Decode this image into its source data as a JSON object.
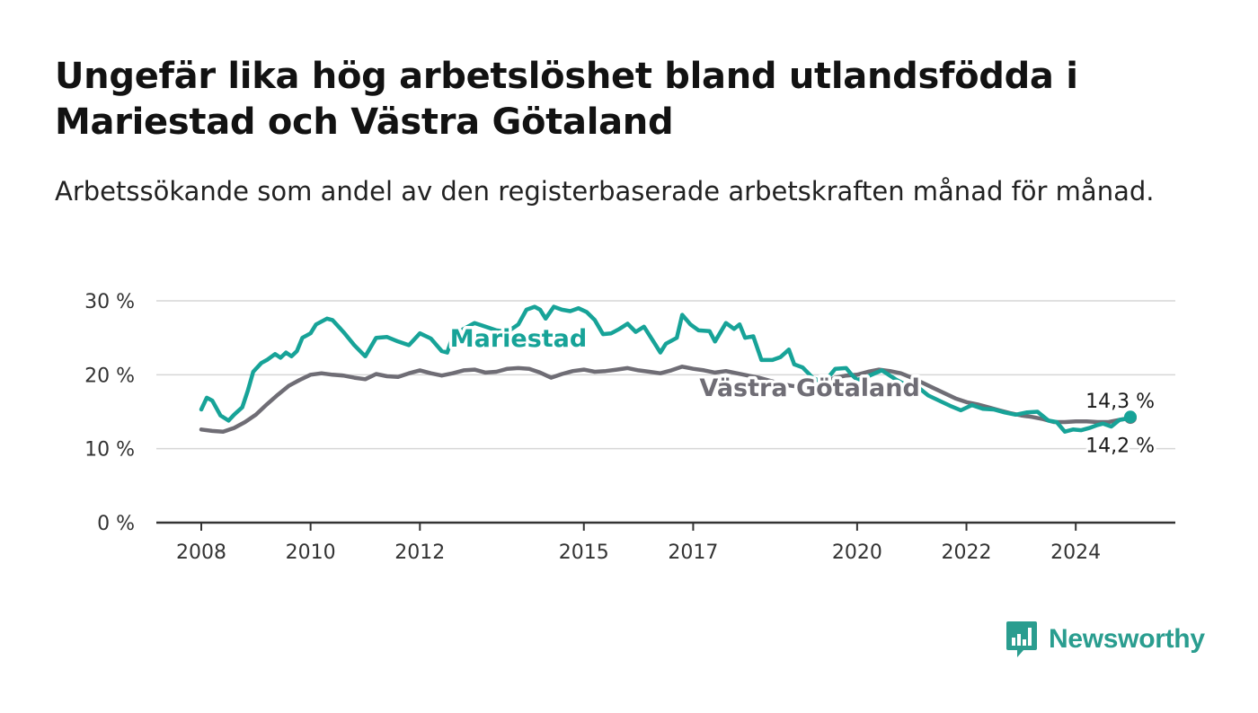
{
  "title": "Ungefär lika hög arbetslöshet bland utlandsfödda i Mariestad och Västra Götaland",
  "subtitle": "Arbetssökande som andel av den registerbaserade arbetskraften månad för månad.",
  "brand": {
    "name": "Newsworthy",
    "icon": "newsworthy-logo-icon",
    "color": "#2a9d8f"
  },
  "chart_data": {
    "type": "line",
    "ylim": [
      0,
      30
    ],
    "yticks": [
      {
        "value": 0,
        "label": "0 %"
      },
      {
        "value": 10,
        "label": "10 %"
      },
      {
        "value": 20,
        "label": "20 %"
      },
      {
        "value": 30,
        "label": "30 %"
      }
    ],
    "xticks": [
      {
        "value": 2008.0,
        "label": "2008"
      },
      {
        "value": 2010.0,
        "label": "2010"
      },
      {
        "value": 2012.0,
        "label": "2012"
      },
      {
        "value": 2015.0,
        "label": "2015"
      },
      {
        "value": 2017.0,
        "label": "2017"
      },
      {
        "value": 2020.0,
        "label": "2020"
      },
      {
        "value": 2022.0,
        "label": "2022"
      },
      {
        "value": 2024.0,
        "label": "2024"
      }
    ],
    "grid": true,
    "series": [
      {
        "name": "Mariestad",
        "color": "#17a398",
        "end_label": "14,3 %",
        "points": [
          [
            2008.0,
            15.3
          ],
          [
            2008.1,
            16.9
          ],
          [
            2008.2,
            16.5
          ],
          [
            2008.35,
            14.5
          ],
          [
            2008.5,
            13.8
          ],
          [
            2008.6,
            14.6
          ],
          [
            2008.75,
            15.6
          ],
          [
            2008.85,
            17.8
          ],
          [
            2008.95,
            20.4
          ],
          [
            2009.1,
            21.6
          ],
          [
            2009.2,
            22.0
          ],
          [
            2009.35,
            22.8
          ],
          [
            2009.45,
            22.3
          ],
          [
            2009.55,
            23.0
          ],
          [
            2009.65,
            22.5
          ],
          [
            2009.75,
            23.2
          ],
          [
            2009.85,
            25.0
          ],
          [
            2010.0,
            25.6
          ],
          [
            2010.1,
            26.8
          ],
          [
            2010.3,
            27.6
          ],
          [
            2010.4,
            27.4
          ],
          [
            2010.6,
            25.8
          ],
          [
            2010.8,
            24.0
          ],
          [
            2011.0,
            22.5
          ],
          [
            2011.2,
            25.0
          ],
          [
            2011.4,
            25.1
          ],
          [
            2011.6,
            24.5
          ],
          [
            2011.8,
            24.0
          ],
          [
            2012.0,
            25.6
          ],
          [
            2012.2,
            24.9
          ],
          [
            2012.4,
            23.2
          ],
          [
            2012.5,
            23.0
          ],
          [
            2012.6,
            25.2
          ],
          [
            2012.8,
            26.2
          ],
          [
            2013.0,
            27.0
          ],
          [
            2013.2,
            26.5
          ],
          [
            2013.4,
            26.0
          ],
          [
            2013.6,
            25.8
          ],
          [
            2013.8,
            26.8
          ],
          [
            2013.95,
            28.8
          ],
          [
            2014.1,
            29.2
          ],
          [
            2014.2,
            28.8
          ],
          [
            2014.3,
            27.6
          ],
          [
            2014.45,
            29.2
          ],
          [
            2014.6,
            28.8
          ],
          [
            2014.75,
            28.6
          ],
          [
            2014.9,
            29.0
          ],
          [
            2015.05,
            28.5
          ],
          [
            2015.2,
            27.4
          ],
          [
            2015.35,
            25.5
          ],
          [
            2015.5,
            25.6
          ],
          [
            2015.65,
            26.2
          ],
          [
            2015.8,
            26.9
          ],
          [
            2015.95,
            25.8
          ],
          [
            2016.1,
            26.5
          ],
          [
            2016.3,
            24.2
          ],
          [
            2016.4,
            23.0
          ],
          [
            2016.5,
            24.2
          ],
          [
            2016.7,
            25.0
          ],
          [
            2016.8,
            28.1
          ],
          [
            2016.95,
            26.8
          ],
          [
            2017.1,
            26.0
          ],
          [
            2017.3,
            25.9
          ],
          [
            2017.4,
            24.5
          ],
          [
            2017.6,
            27.0
          ],
          [
            2017.75,
            26.2
          ],
          [
            2017.85,
            26.8
          ],
          [
            2017.95,
            25.0
          ],
          [
            2018.1,
            25.2
          ],
          [
            2018.25,
            22.0
          ],
          [
            2018.45,
            22.0
          ],
          [
            2018.6,
            22.4
          ],
          [
            2018.75,
            23.4
          ],
          [
            2018.85,
            21.4
          ],
          [
            2019.0,
            21.0
          ],
          [
            2019.2,
            19.5
          ],
          [
            2019.4,
            19.0
          ],
          [
            2019.6,
            20.8
          ],
          [
            2019.8,
            20.9
          ],
          [
            2019.9,
            20.0
          ],
          [
            2020.0,
            19.3
          ],
          [
            2020.2,
            19.8
          ],
          [
            2020.45,
            20.6
          ],
          [
            2020.7,
            19.4
          ],
          [
            2020.9,
            18.6
          ],
          [
            2021.1,
            18.4
          ],
          [
            2021.3,
            17.2
          ],
          [
            2021.5,
            16.5
          ],
          [
            2021.7,
            15.8
          ],
          [
            2021.9,
            15.2
          ],
          [
            2022.1,
            15.9
          ],
          [
            2022.3,
            15.4
          ],
          [
            2022.5,
            15.3
          ],
          [
            2022.7,
            14.9
          ],
          [
            2022.9,
            14.6
          ],
          [
            2023.1,
            14.9
          ],
          [
            2023.3,
            15.0
          ],
          [
            2023.5,
            13.8
          ],
          [
            2023.65,
            13.6
          ],
          [
            2023.8,
            12.3
          ],
          [
            2023.95,
            12.6
          ],
          [
            2024.1,
            12.5
          ],
          [
            2024.25,
            12.8
          ],
          [
            2024.4,
            13.2
          ],
          [
            2024.5,
            13.4
          ],
          [
            2024.65,
            13.0
          ],
          [
            2024.8,
            13.9
          ],
          [
            2024.9,
            14.0
          ],
          [
            2025.0,
            14.3
          ]
        ]
      },
      {
        "name": "Västra Götaland",
        "color": "#6f6d75",
        "end_label": "14,2 %",
        "points": [
          [
            2008.0,
            12.6
          ],
          [
            2008.2,
            12.4
          ],
          [
            2008.4,
            12.3
          ],
          [
            2008.6,
            12.8
          ],
          [
            2008.8,
            13.6
          ],
          [
            2009.0,
            14.6
          ],
          [
            2009.2,
            16.0
          ],
          [
            2009.4,
            17.3
          ],
          [
            2009.6,
            18.5
          ],
          [
            2009.8,
            19.3
          ],
          [
            2010.0,
            20.0
          ],
          [
            2010.2,
            20.2
          ],
          [
            2010.4,
            20.0
          ],
          [
            2010.6,
            19.9
          ],
          [
            2010.8,
            19.6
          ],
          [
            2011.0,
            19.4
          ],
          [
            2011.2,
            20.1
          ],
          [
            2011.4,
            19.8
          ],
          [
            2011.6,
            19.7
          ],
          [
            2011.8,
            20.2
          ],
          [
            2012.0,
            20.6
          ],
          [
            2012.2,
            20.2
          ],
          [
            2012.4,
            19.9
          ],
          [
            2012.6,
            20.2
          ],
          [
            2012.8,
            20.6
          ],
          [
            2013.0,
            20.7
          ],
          [
            2013.2,
            20.3
          ],
          [
            2013.4,
            20.4
          ],
          [
            2013.6,
            20.8
          ],
          [
            2013.8,
            20.9
          ],
          [
            2014.0,
            20.8
          ],
          [
            2014.2,
            20.3
          ],
          [
            2014.4,
            19.6
          ],
          [
            2014.6,
            20.1
          ],
          [
            2014.8,
            20.5
          ],
          [
            2015.0,
            20.7
          ],
          [
            2015.2,
            20.4
          ],
          [
            2015.4,
            20.5
          ],
          [
            2015.6,
            20.7
          ],
          [
            2015.8,
            20.9
          ],
          [
            2016.0,
            20.6
          ],
          [
            2016.2,
            20.4
          ],
          [
            2016.4,
            20.2
          ],
          [
            2016.6,
            20.6
          ],
          [
            2016.8,
            21.1
          ],
          [
            2017.0,
            20.8
          ],
          [
            2017.2,
            20.6
          ],
          [
            2017.4,
            20.3
          ],
          [
            2017.6,
            20.5
          ],
          [
            2017.8,
            20.2
          ],
          [
            2018.0,
            19.9
          ],
          [
            2018.2,
            19.6
          ],
          [
            2018.4,
            19.2
          ],
          [
            2018.6,
            18.8
          ],
          [
            2018.8,
            18.5
          ],
          [
            2019.0,
            18.3
          ],
          [
            2019.2,
            18.6
          ],
          [
            2019.4,
            19.0
          ],
          [
            2019.6,
            19.6
          ],
          [
            2019.8,
            19.9
          ],
          [
            2020.0,
            20.0
          ],
          [
            2020.2,
            20.4
          ],
          [
            2020.4,
            20.7
          ],
          [
            2020.6,
            20.5
          ],
          [
            2020.8,
            20.2
          ],
          [
            2021.0,
            19.6
          ],
          [
            2021.2,
            18.9
          ],
          [
            2021.4,
            18.2
          ],
          [
            2021.6,
            17.5
          ],
          [
            2021.8,
            16.8
          ],
          [
            2022.0,
            16.3
          ],
          [
            2022.2,
            16.0
          ],
          [
            2022.4,
            15.6
          ],
          [
            2022.6,
            15.2
          ],
          [
            2022.8,
            14.8
          ],
          [
            2023.0,
            14.5
          ],
          [
            2023.2,
            14.3
          ],
          [
            2023.4,
            14.0
          ],
          [
            2023.6,
            13.6
          ],
          [
            2023.8,
            13.6
          ],
          [
            2024.0,
            13.7
          ],
          [
            2024.2,
            13.7
          ],
          [
            2024.4,
            13.6
          ],
          [
            2024.6,
            13.6
          ],
          [
            2024.8,
            13.9
          ],
          [
            2025.0,
            14.2
          ]
        ]
      }
    ]
  }
}
